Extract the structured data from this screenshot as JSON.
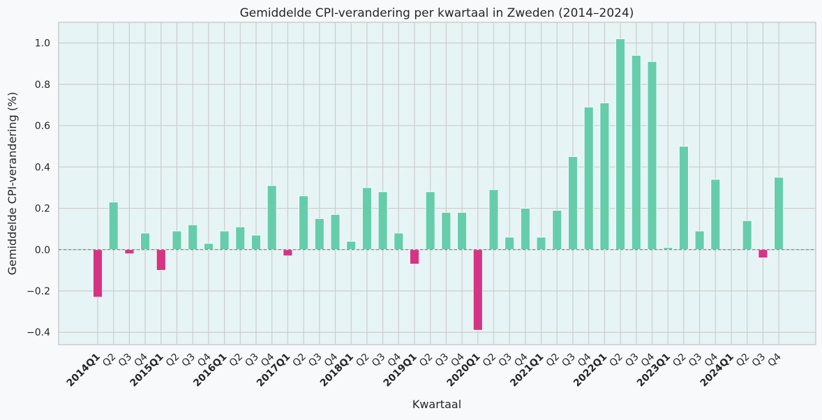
{
  "chart_data": {
    "type": "bar",
    "title": "Gemiddelde CPI-verandering per kwartaal in Zweden (2014–2024)",
    "xlabel": "Kwartaal",
    "ylabel": "Gemiddelde CPI-verandering (%)",
    "ylim": [
      -0.46,
      1.1
    ],
    "yticks": [
      -0.4,
      -0.2,
      0.0,
      0.2,
      0.4,
      0.6,
      0.8,
      1.0
    ],
    "ytick_labels": [
      "−0.4",
      "−0.2",
      "0.0",
      "0.2",
      "0.4",
      "0.6",
      "0.8",
      "1.0"
    ],
    "grid": true,
    "zero_line": true,
    "categories": [
      "2014Q1",
      "Q2",
      "Q3",
      "Q4",
      "2015Q1",
      "Q2",
      "Q3",
      "Q4",
      "2016Q1",
      "Q2",
      "Q3",
      "Q4",
      "2017Q1",
      "Q2",
      "Q3",
      "Q4",
      "2018Q1",
      "Q2",
      "Q3",
      "Q4",
      "2019Q1",
      "Q2",
      "Q3",
      "Q4",
      "2020Q1",
      "Q2",
      "Q3",
      "Q4",
      "2021Q1",
      "Q2",
      "Q3",
      "Q4",
      "2022Q1",
      "Q2",
      "Q3",
      "Q4",
      "2023Q1",
      "Q2",
      "Q3",
      "Q4",
      "2024Q1",
      "Q2",
      "Q3",
      "Q4"
    ],
    "bold_categories": [
      "2014Q1",
      "2015Q1",
      "2016Q1",
      "2017Q1",
      "2018Q1",
      "2019Q1",
      "2020Q1",
      "2021Q1",
      "2022Q1",
      "2023Q1",
      "2024Q1"
    ],
    "values": [
      -0.23,
      0.23,
      -0.02,
      0.08,
      -0.1,
      0.09,
      0.12,
      0.03,
      0.09,
      0.11,
      0.07,
      0.31,
      -0.03,
      0.26,
      0.15,
      0.17,
      0.04,
      0.3,
      0.28,
      0.08,
      -0.07,
      0.28,
      0.18,
      0.18,
      -0.39,
      0.29,
      0.06,
      0.2,
      0.06,
      0.19,
      0.45,
      0.69,
      0.71,
      1.02,
      0.94,
      0.91,
      0.01,
      0.5,
      0.09,
      0.34,
      0.0,
      0.14,
      -0.04,
      0.35
    ],
    "colors": {
      "positive": "#66cdaa",
      "negative": "#d63384",
      "plot_background": "#e6f4f5",
      "page_background": "#f8f9fb",
      "grid": "#cccccc",
      "zero_line": "#888888"
    }
  }
}
